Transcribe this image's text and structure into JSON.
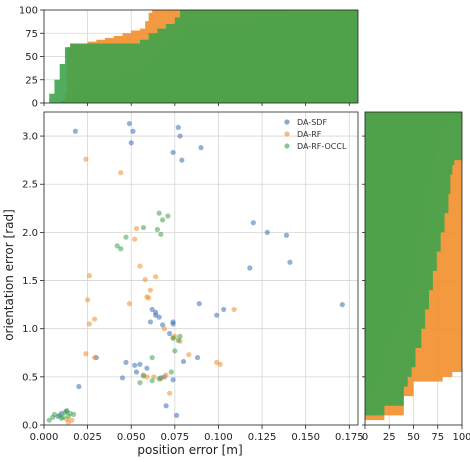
{
  "chart_data": {
    "type": "scatter",
    "title": "",
    "xlabel": "position error [m]",
    "ylabel": "orientation error [rad]",
    "xlim": [
      0.0,
      0.18
    ],
    "ylim": [
      0.0,
      3.25
    ],
    "xticks": [
      0.0,
      0.025,
      0.05,
      0.075,
      0.1,
      0.125,
      0.15,
      0.175
    ],
    "xtick_labels": [
      "0.000",
      "0.025",
      "0.050",
      "0.075",
      "0.100",
      "0.125",
      "0.150",
      "0.175"
    ],
    "yticks": [
      0.0,
      0.5,
      1.0,
      1.5,
      2.0,
      2.5,
      3.0
    ],
    "ytick_labels": [
      "0.0",
      "0.5",
      "1.0",
      "1.5",
      "2.0",
      "2.5",
      "3.0"
    ],
    "grid": true,
    "legend_position": "top-right",
    "colors": {
      "DA-SDF": "#3b6fb6",
      "DA-RF": "#f28e2b",
      "DA-RF-OCCL": "#3fa34d"
    },
    "series": [
      {
        "name": "DA-SDF",
        "points": [
          [
            0.018,
            3.05
          ],
          [
            0.049,
            3.13
          ],
          [
            0.05,
            2.93
          ],
          [
            0.051,
            3.05
          ],
          [
            0.077,
            3.09
          ],
          [
            0.078,
            3.0
          ],
          [
            0.09,
            2.88
          ],
          [
            0.074,
            2.83
          ],
          [
            0.079,
            2.75
          ],
          [
            0.12,
            2.1
          ],
          [
            0.128,
            2.0
          ],
          [
            0.139,
            1.97
          ],
          [
            0.141,
            1.69
          ],
          [
            0.118,
            1.63
          ],
          [
            0.103,
            1.2
          ],
          [
            0.099,
            1.14
          ],
          [
            0.089,
            1.26
          ],
          [
            0.171,
            1.25
          ],
          [
            0.062,
            1.2
          ],
          [
            0.061,
            1.07
          ],
          [
            0.064,
            1.17
          ],
          [
            0.066,
            1.12
          ],
          [
            0.074,
            1.07
          ],
          [
            0.068,
            1.04
          ],
          [
            0.047,
            0.65
          ],
          [
            0.052,
            0.62
          ],
          [
            0.055,
            0.63
          ],
          [
            0.059,
            0.59
          ],
          [
            0.053,
            0.55
          ],
          [
            0.08,
            0.66
          ],
          [
            0.088,
            0.7
          ],
          [
            0.074,
            0.47
          ],
          [
            0.076,
            0.1
          ],
          [
            0.07,
            0.2
          ],
          [
            0.069,
            0.5
          ],
          [
            0.067,
            0.49
          ],
          [
            0.01,
            0.12
          ],
          [
            0.013,
            0.14
          ],
          [
            0.008,
            0.09
          ],
          [
            0.02,
            0.4
          ],
          [
            0.03,
            0.7
          ],
          [
            0.074,
            1.05
          ],
          [
            0.045,
            0.49
          ],
          [
            0.072,
            0.95
          ],
          [
            0.064,
            1.14
          ]
        ]
      },
      {
        "name": "DA-RF",
        "points": [
          [
            0.024,
            2.76
          ],
          [
            0.026,
            1.55
          ],
          [
            0.025,
            1.3
          ],
          [
            0.026,
            1.05
          ],
          [
            0.029,
            1.1
          ],
          [
            0.044,
            2.62
          ],
          [
            0.052,
            1.93
          ],
          [
            0.053,
            2.04
          ],
          [
            0.055,
            1.65
          ],
          [
            0.064,
            1.54
          ],
          [
            0.061,
            1.4
          ],
          [
            0.058,
            1.51
          ],
          [
            0.049,
            1.26
          ],
          [
            0.06,
            1.32
          ],
          [
            0.059,
            1.33
          ],
          [
            0.069,
            1.0
          ],
          [
            0.075,
            0.92
          ],
          [
            0.074,
            0.91
          ],
          [
            0.078,
            0.87
          ],
          [
            0.083,
            0.73
          ],
          [
            0.057,
            0.52
          ],
          [
            0.059,
            0.5
          ],
          [
            0.063,
            0.5
          ],
          [
            0.067,
            0.48
          ],
          [
            0.07,
            0.52
          ],
          [
            0.072,
            0.33
          ],
          [
            0.024,
            0.74
          ],
          [
            0.029,
            0.7
          ],
          [
            0.013,
            0.06
          ],
          [
            0.014,
            0.03
          ],
          [
            0.016,
            0.05
          ],
          [
            0.099,
            0.65
          ],
          [
            0.101,
            0.63
          ],
          [
            0.109,
            1.2
          ]
        ]
      },
      {
        "name": "DA-RF-OCCL",
        "points": [
          [
            0.057,
            2.05
          ],
          [
            0.071,
            2.17
          ],
          [
            0.068,
            2.13
          ],
          [
            0.066,
            2.2
          ],
          [
            0.065,
            2.03
          ],
          [
            0.067,
            1.98
          ],
          [
            0.047,
            1.95
          ],
          [
            0.042,
            1.86
          ],
          [
            0.044,
            1.83
          ],
          [
            0.077,
            0.88
          ],
          [
            0.078,
            0.92
          ],
          [
            0.074,
            0.9
          ],
          [
            0.075,
            0.77
          ],
          [
            0.062,
            0.7
          ],
          [
            0.073,
            0.55
          ],
          [
            0.066,
            0.48
          ],
          [
            0.057,
            0.51
          ],
          [
            0.055,
            0.44
          ],
          [
            0.062,
            0.46
          ],
          [
            0.005,
            0.08
          ],
          [
            0.006,
            0.11
          ],
          [
            0.009,
            0.1
          ],
          [
            0.011,
            0.08
          ],
          [
            0.012,
            0.13
          ],
          [
            0.013,
            0.15
          ],
          [
            0.015,
            0.12
          ],
          [
            0.014,
            0.09
          ],
          [
            0.01,
            0.07
          ],
          [
            0.017,
            0.11
          ],
          [
            0.003,
            0.05
          ]
        ]
      }
    ],
    "top_histogram": {
      "axis": "position error [m]",
      "ylim": [
        0,
        100
      ],
      "yticks": [
        0,
        25,
        50,
        75,
        100
      ],
      "ytick_labels": [
        "0",
        "25",
        "50",
        "75",
        "100"
      ],
      "series": [
        {
          "name": "DA-SDF",
          "x": [
            0.0,
            0.005,
            0.01,
            0.013,
            0.016,
            0.018,
            0.02,
            0.024,
            0.028,
            0.03,
            0.035,
            0.04,
            0.045,
            0.05,
            0.055,
            0.06,
            0.062,
            0.065,
            0.068,
            0.072,
            0.078,
            0.08,
            0.09,
            0.1,
            0.12,
            0.14,
            0.16,
            0.17,
            0.171,
            0.18
          ],
          "y": [
            0,
            0,
            2,
            5,
            10,
            18,
            23,
            25,
            28,
            30,
            30,
            30,
            32,
            34,
            38,
            42,
            48,
            53,
            60,
            70,
            82,
            84,
            86,
            88,
            91,
            94,
            97,
            99,
            100,
            100
          ]
        },
        {
          "name": "DA-RF",
          "x": [
            0.0,
            0.01,
            0.012,
            0.013,
            0.015,
            0.02,
            0.025,
            0.03,
            0.035,
            0.04,
            0.045,
            0.05,
            0.055,
            0.058,
            0.06,
            0.062,
            0.066,
            0.07,
            0.075,
            0.08,
            0.09,
            0.1,
            0.11,
            0.18
          ],
          "y": [
            0,
            0,
            10,
            60,
            64,
            64,
            66,
            68,
            70,
            72,
            75,
            78,
            80,
            88,
            97,
            100,
            100,
            100,
            100,
            100,
            100,
            100,
            100,
            100
          ]
        },
        {
          "name": "DA-RF-OCCL",
          "x": [
            0.0,
            0.003,
            0.006,
            0.009,
            0.012,
            0.015,
            0.02,
            0.03,
            0.04,
            0.05,
            0.055,
            0.06,
            0.065,
            0.07,
            0.075,
            0.078,
            0.08,
            0.18
          ],
          "y": [
            0,
            10,
            25,
            42,
            60,
            64,
            64,
            64,
            64,
            64,
            68,
            75,
            80,
            85,
            92,
            100,
            100,
            100
          ]
        }
      ]
    },
    "right_histogram": {
      "axis": "orientation error [rad]",
      "xlim": [
        0,
        100
      ],
      "xticks": [
        0,
        25,
        50,
        75,
        100
      ],
      "xtick_labels": [
        "0",
        "25",
        "50",
        "75",
        "100"
      ],
      "series": [
        {
          "name": "DA-SDF",
          "y": [
            0.0,
            0.1,
            0.2,
            0.4,
            0.5,
            0.6,
            0.8,
            1.0,
            1.2,
            1.4,
            1.6,
            1.8,
            2.0,
            2.2,
            2.5,
            2.75,
            2.85,
            2.95,
            3.05,
            3.15,
            3.25
          ],
          "x": [
            0,
            5,
            8,
            12,
            18,
            22,
            30,
            38,
            45,
            50,
            54,
            58,
            62,
            66,
            70,
            73,
            75,
            80,
            90,
            100,
            100
          ]
        },
        {
          "name": "DA-RF",
          "y": [
            0.0,
            0.05,
            0.1,
            0.3,
            0.45,
            0.5,
            0.55,
            0.7,
            0.9,
            1.1,
            1.3,
            1.5,
            1.7,
            2.0,
            2.3,
            2.6,
            2.8,
            3.0,
            3.25
          ],
          "x": [
            0,
            20,
            40,
            50,
            80,
            90,
            100,
            100,
            100,
            100,
            100,
            100,
            100,
            100,
            100,
            100,
            100,
            100,
            100
          ]
        },
        {
          "name": "DA-RF-OCCL",
          "y": [
            0.0,
            0.1,
            0.2,
            0.4,
            0.5,
            0.6,
            0.8,
            1.0,
            1.2,
            1.4,
            1.6,
            1.8,
            2.0,
            2.2,
            2.4,
            2.6,
            2.7,
            2.75,
            3.25
          ],
          "x": [
            0,
            20,
            40,
            44,
            48,
            52,
            58,
            62,
            66,
            70,
            74,
            78,
            82,
            86,
            88,
            90,
            92,
            100,
            100
          ]
        }
      ]
    }
  }
}
